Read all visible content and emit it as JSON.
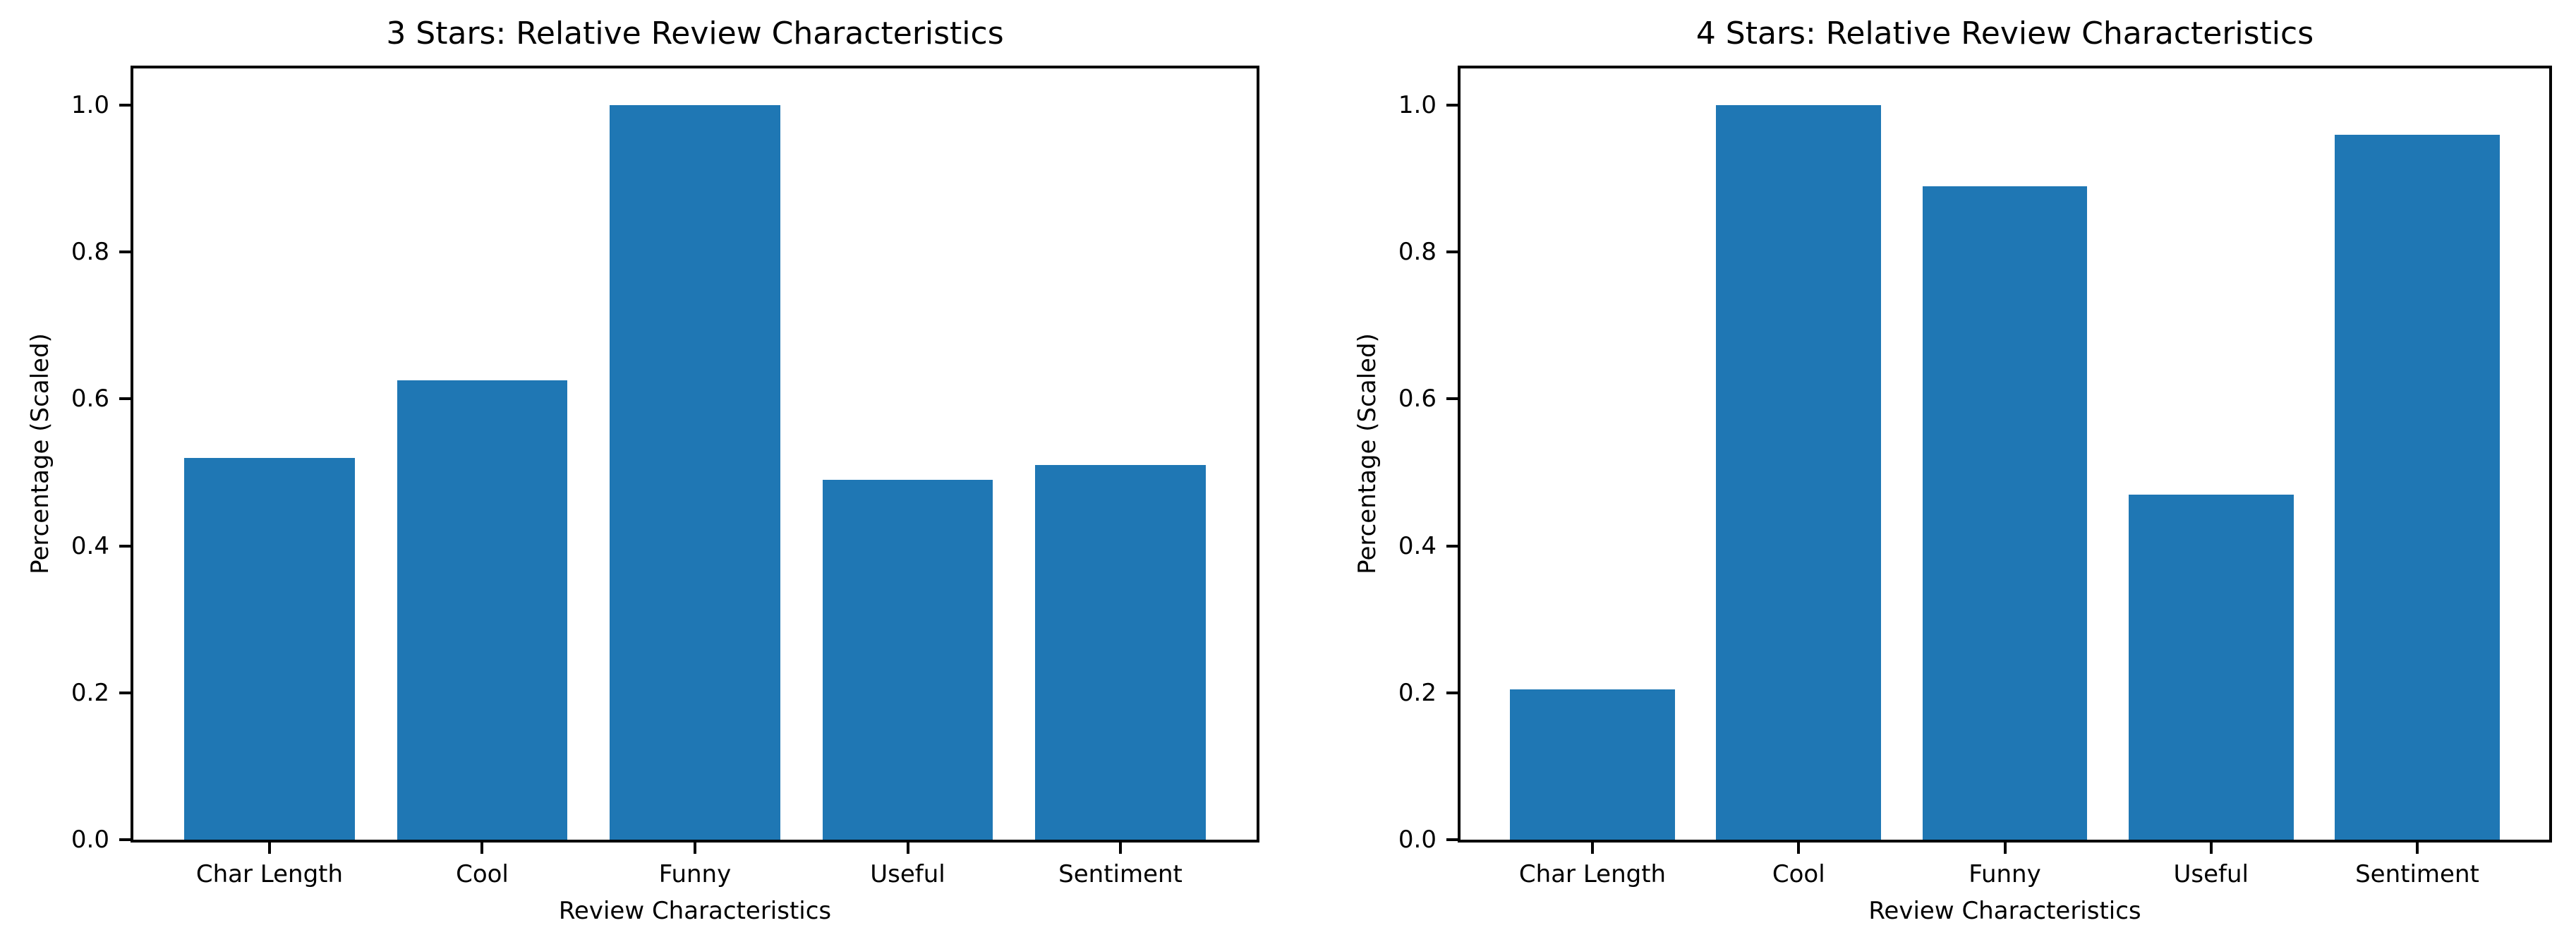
{
  "figure": {
    "background": "#ffffff",
    "bar_color": "#1f77b4",
    "axis_color": "#000000",
    "text_color": "#000000"
  },
  "chart_data": [
    {
      "type": "bar",
      "title": "3 Stars: Relative Review Characteristics",
      "xlabel": "Review Characteristics",
      "ylabel": "Percentage (Scaled)",
      "categories": [
        "Char Length",
        "Cool",
        "Funny",
        "Useful",
        "Sentiment"
      ],
      "values": [
        0.52,
        0.625,
        1.0,
        0.49,
        0.51
      ],
      "yticks": [
        0.0,
        0.2,
        0.4,
        0.6,
        0.8,
        1.0
      ],
      "ytick_labels": [
        "0.0",
        "0.2",
        "0.4",
        "0.6",
        "0.8",
        "1.0"
      ],
      "ylim": [
        0,
        1.05
      ],
      "grid": false,
      "legend_position": "none"
    },
    {
      "type": "bar",
      "title": "4 Stars: Relative Review Characteristics",
      "xlabel": "Review Characteristics",
      "ylabel": "Percentage (Scaled)",
      "categories": [
        "Char Length",
        "Cool",
        "Funny",
        "Useful",
        "Sentiment"
      ],
      "values": [
        0.205,
        1.0,
        0.89,
        0.47,
        0.96
      ],
      "yticks": [
        0.0,
        0.2,
        0.4,
        0.6,
        0.8,
        1.0
      ],
      "ytick_labels": [
        "0.0",
        "0.2",
        "0.4",
        "0.6",
        "0.8",
        "1.0"
      ],
      "ylim": [
        0,
        1.05
      ],
      "grid": false,
      "legend_position": "none"
    }
  ]
}
